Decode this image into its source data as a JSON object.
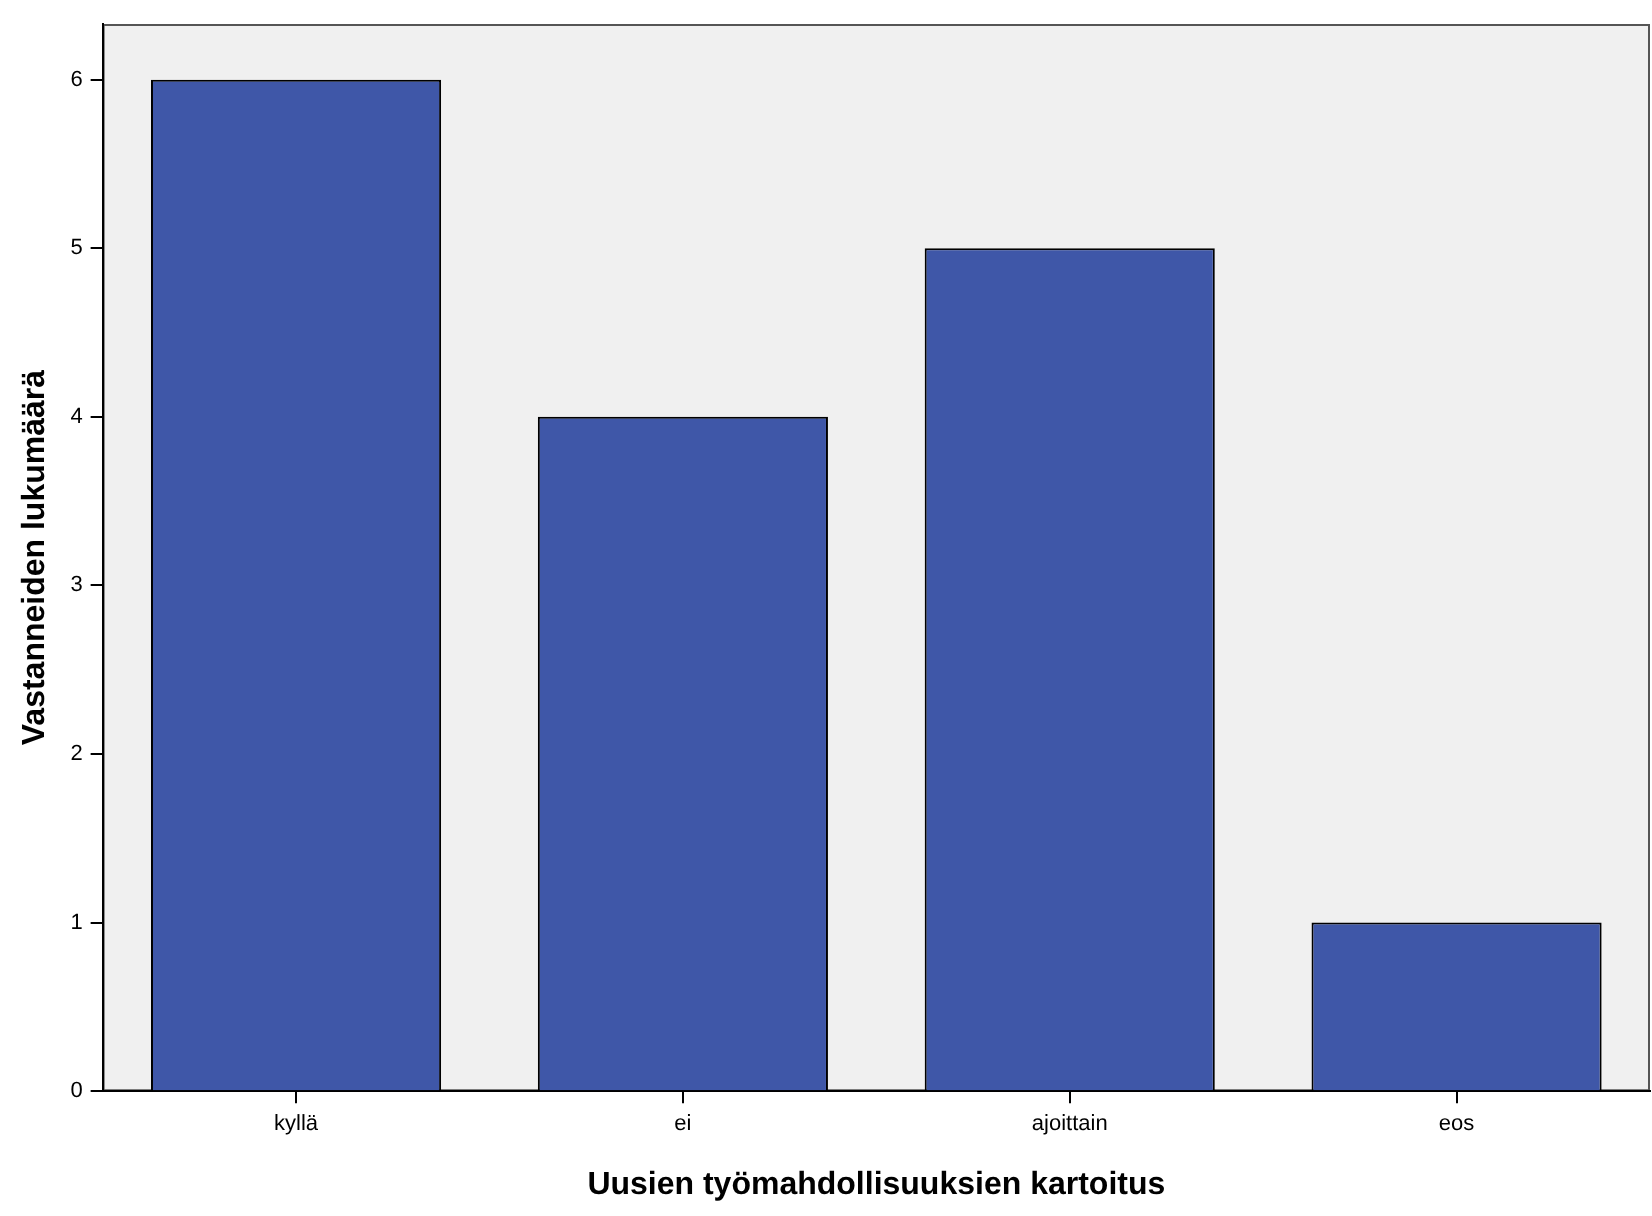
{
  "chart_data": {
    "type": "bar",
    "xlabel": "Uusien työmahdollisuuksien kartoitus",
    "ylabel": "Vastanneiden lukumäärä",
    "categories": [
      "kyllä",
      "ei",
      "ajoittain",
      "eos"
    ],
    "values": [
      6,
      4,
      5,
      1
    ],
    "color": "#3f57a8",
    "ylim": [
      0,
      6.33
    ],
    "yticks": [
      0,
      1,
      2,
      3,
      4,
      5,
      6
    ],
    "legend": false
  }
}
